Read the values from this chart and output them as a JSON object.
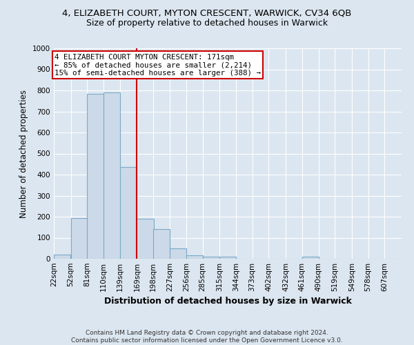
{
  "title": "4, ELIZABETH COURT, MYTON CRESCENT, WARWICK, CV34 6QB",
  "subtitle": "Size of property relative to detached houses in Warwick",
  "xlabel": "Distribution of detached houses by size in Warwick",
  "ylabel": "Number of detached properties",
  "bar_color": "#ccd9e8",
  "bar_edge_color": "#7aaac8",
  "background_color": "#dce6f0",
  "grid_color": "#ffffff",
  "vline_x": 169,
  "vline_color": "#cc0000",
  "annotation_text": "4 ELIZABETH COURT MYTON CRESCENT: 171sqm\n← 85% of detached houses are smaller (2,214)\n15% of semi-detached houses are larger (388) →",
  "annotation_box_color": "#ffffff",
  "annotation_edge_color": "#cc0000",
  "categories": [
    "22sqm",
    "52sqm",
    "81sqm",
    "110sqm",
    "139sqm",
    "169sqm",
    "198sqm",
    "227sqm",
    "256sqm",
    "285sqm",
    "315sqm",
    "344sqm",
    "373sqm",
    "402sqm",
    "432sqm",
    "461sqm",
    "490sqm",
    "519sqm",
    "549sqm",
    "578sqm",
    "607sqm"
  ],
  "bin_edges": [
    22,
    52,
    81,
    110,
    139,
    169,
    198,
    227,
    256,
    285,
    315,
    344,
    373,
    402,
    432,
    461,
    490,
    519,
    549,
    578,
    607
  ],
  "values": [
    20,
    195,
    785,
    790,
    435,
    190,
    140,
    50,
    15,
    10,
    10,
    0,
    0,
    0,
    0,
    10,
    0,
    0,
    0,
    0,
    0
  ],
  "ylim": [
    0,
    1000
  ],
  "yticks": [
    0,
    100,
    200,
    300,
    400,
    500,
    600,
    700,
    800,
    900,
    1000
  ],
  "title_fontsize": 9.5,
  "subtitle_fontsize": 9,
  "xlabel_fontsize": 9,
  "ylabel_fontsize": 8.5,
  "tick_fontsize": 7.5,
  "annotation_fontsize": 7.8,
  "footer_fontsize": 6.5
}
